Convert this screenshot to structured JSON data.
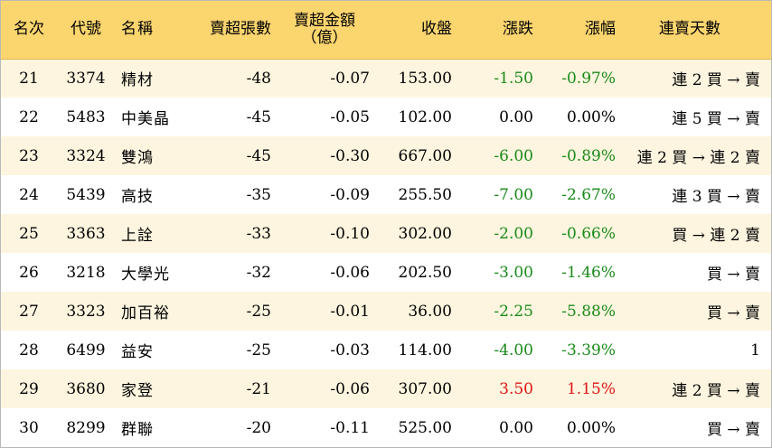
{
  "colors": {
    "header_bg": "#fbd66f",
    "row_alt_bg": "#fdf5df",
    "down": "#1a8a1a",
    "up": "#e01515"
  },
  "headers": {
    "rank": "名次",
    "code": "代號",
    "name": "名稱",
    "lots": "賣超張數",
    "amount_line1": "賣超金額",
    "amount_line2": "（億）",
    "close": "收盤",
    "change": "漲跌",
    "pct": "漲幅",
    "streak": "連賣天數"
  },
  "rows": [
    {
      "rank": "21",
      "code": "3374",
      "name": "精材",
      "lots": "-48",
      "amount": "-0.07",
      "close": "153.00",
      "change": "-1.50",
      "pct": "-0.97%",
      "streak": "連 2 買 → 賣",
      "dir": "down"
    },
    {
      "rank": "22",
      "code": "5483",
      "name": "中美晶",
      "lots": "-45",
      "amount": "-0.05",
      "close": "102.00",
      "change": "0.00",
      "pct": "0.00%",
      "streak": "連 5 買 → 賣",
      "dir": "flat"
    },
    {
      "rank": "23",
      "code": "3324",
      "name": "雙鴻",
      "lots": "-45",
      "amount": "-0.30",
      "close": "667.00",
      "change": "-6.00",
      "pct": "-0.89%",
      "streak": "連 2 買 → 連 2 賣",
      "dir": "down"
    },
    {
      "rank": "24",
      "code": "5439",
      "name": "高技",
      "lots": "-35",
      "amount": "-0.09",
      "close": "255.50",
      "change": "-7.00",
      "pct": "-2.67%",
      "streak": "連 3 買 → 賣",
      "dir": "down"
    },
    {
      "rank": "25",
      "code": "3363",
      "name": "上詮",
      "lots": "-33",
      "amount": "-0.10",
      "close": "302.00",
      "change": "-2.00",
      "pct": "-0.66%",
      "streak": "買 → 連 2 賣",
      "dir": "down"
    },
    {
      "rank": "26",
      "code": "3218",
      "name": "大學光",
      "lots": "-32",
      "amount": "-0.06",
      "close": "202.50",
      "change": "-3.00",
      "pct": "-1.46%",
      "streak": "買 → 賣",
      "dir": "down"
    },
    {
      "rank": "27",
      "code": "3323",
      "name": "加百裕",
      "lots": "-25",
      "amount": "-0.01",
      "close": "36.00",
      "change": "-2.25",
      "pct": "-5.88%",
      "streak": "買 → 賣",
      "dir": "down"
    },
    {
      "rank": "28",
      "code": "6499",
      "name": "益安",
      "lots": "-25",
      "amount": "-0.03",
      "close": "114.00",
      "change": "-4.00",
      "pct": "-3.39%",
      "streak": "1",
      "dir": "down"
    },
    {
      "rank": "29",
      "code": "3680",
      "name": "家登",
      "lots": "-21",
      "amount": "-0.06",
      "close": "307.00",
      "change": "3.50",
      "pct": "1.15%",
      "streak": "連 2 買 → 賣",
      "dir": "up"
    },
    {
      "rank": "30",
      "code": "8299",
      "name": "群聯",
      "lots": "-20",
      "amount": "-0.11",
      "close": "525.00",
      "change": "0.00",
      "pct": "0.00%",
      "streak": "買 → 賣",
      "dir": "flat"
    }
  ]
}
